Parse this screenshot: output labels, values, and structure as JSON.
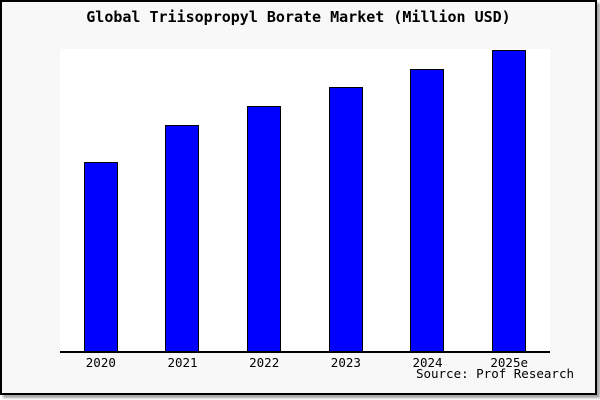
{
  "window": {
    "background_color": "#f8f8f8",
    "plot_background_color": "#ffffff",
    "border_color": "#000000"
  },
  "title": "Global Triisopropyl Borate Market (Million USD)",
  "source_note": "Source: Prof Research",
  "chart_data": {
    "type": "bar",
    "title": "Global Triisopropyl Borate Market (Million USD)",
    "categories": [
      "2020",
      "2021",
      "2022",
      "2023",
      "2024",
      "2025e"
    ],
    "values": [
      62.6,
      74.8,
      81.1,
      87.4,
      93.4,
      99.7
    ],
    "values_note": "relative bar heights in % of plot height; chart shows no y-axis scale",
    "xlabel": "",
    "ylabel": "",
    "ylim": [
      0,
      100
    ],
    "grid": false,
    "legend": false,
    "bar_color": "#0000ff",
    "bar_border_color": "#000000",
    "annotations": [
      "Source: Prof Research"
    ]
  }
}
